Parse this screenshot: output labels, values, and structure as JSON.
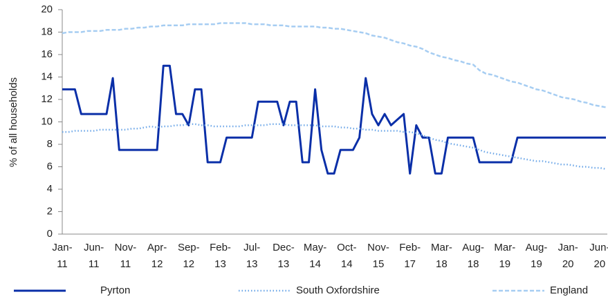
{
  "chart_data": {
    "type": "line",
    "y_label": "% of all households",
    "categories": [
      "Jan-11",
      null,
      null,
      null,
      null,
      "Jun-11",
      null,
      null,
      null,
      null,
      "Nov-11",
      null,
      null,
      null,
      null,
      "Apr-12",
      null,
      null,
      null,
      null,
      "Sep-12",
      null,
      null,
      null,
      null,
      "Feb-13",
      null,
      null,
      null,
      null,
      "Jul-13",
      null,
      null,
      null,
      null,
      "Dec-13",
      null,
      null,
      null,
      null,
      "May-14",
      null,
      null,
      null,
      null,
      "Oct-14",
      null,
      null,
      null,
      null,
      "Nov-15",
      null,
      null,
      null,
      null,
      "Feb-17",
      null,
      null,
      null,
      null,
      "Mar-18",
      null,
      null,
      null,
      null,
      "Aug-18",
      null,
      null,
      null,
      null,
      "Mar-19",
      null,
      null,
      null,
      null,
      "Aug-19",
      null,
      null,
      null,
      null,
      "Jan-20",
      null,
      null,
      null,
      null,
      "Jun-20",
      null
    ],
    "series": [
      {
        "name": "Pyrton",
        "color": "#0a2fa8",
        "style": "solid",
        "values": [
          12.9,
          12.9,
          12.9,
          10.7,
          10.7,
          10.7,
          10.7,
          10.7,
          13.9,
          7.5,
          7.5,
          7.5,
          7.5,
          7.5,
          7.5,
          7.5,
          15.0,
          15.0,
          10.7,
          10.7,
          9.7,
          12.9,
          12.9,
          6.4,
          6.4,
          6.4,
          8.6,
          8.6,
          8.6,
          8.6,
          8.6,
          11.8,
          11.8,
          11.8,
          11.8,
          9.7,
          11.8,
          11.8,
          6.4,
          6.4,
          12.9,
          7.5,
          5.4,
          5.4,
          7.5,
          7.5,
          7.5,
          8.6,
          13.9,
          10.7,
          9.7,
          10.7,
          9.7,
          10.2,
          10.7,
          5.4,
          9.7,
          8.6,
          8.6,
          5.4,
          5.4,
          8.6,
          8.6,
          8.6,
          8.6,
          8.6,
          6.4,
          6.4,
          6.4,
          6.4,
          6.4,
          6.4,
          8.6,
          8.6,
          8.6,
          8.6,
          8.6,
          8.6,
          8.6,
          8.6,
          8.6,
          8.6,
          8.6,
          8.6,
          8.6,
          8.6,
          8.6
        ]
      },
      {
        "name": "South Oxfordshire",
        "color": "#6fa8e8",
        "style": "dotted",
        "values": [
          9.1,
          9.1,
          9.2,
          9.2,
          9.2,
          9.2,
          9.3,
          9.3,
          9.3,
          9.3,
          9.3,
          9.4,
          9.4,
          9.5,
          9.6,
          9.5,
          9.6,
          9.6,
          9.7,
          9.7,
          9.8,
          9.8,
          9.7,
          9.7,
          9.6,
          9.6,
          9.6,
          9.6,
          9.6,
          9.7,
          9.7,
          9.7,
          9.7,
          9.8,
          9.8,
          9.8,
          9.7,
          9.7,
          9.7,
          9.7,
          9.7,
          9.6,
          9.6,
          9.6,
          9.5,
          9.5,
          9.4,
          9.4,
          9.3,
          9.3,
          9.2,
          9.2,
          9.2,
          9.2,
          9.1,
          9.1,
          9.0,
          8.8,
          8.6,
          8.4,
          8.3,
          8.1,
          8.0,
          7.9,
          7.8,
          7.7,
          7.5,
          7.3,
          7.2,
          7.1,
          7.0,
          6.9,
          6.8,
          6.7,
          6.6,
          6.5,
          6.5,
          6.4,
          6.3,
          6.2,
          6.2,
          6.1,
          6.0,
          6.0,
          5.9,
          5.9,
          5.8
        ]
      },
      {
        "name": "England",
        "color": "#a6cdf2",
        "style": "dashed",
        "values": [
          17.9,
          18.0,
          18.0,
          18.0,
          18.1,
          18.1,
          18.1,
          18.2,
          18.2,
          18.2,
          18.3,
          18.3,
          18.4,
          18.4,
          18.5,
          18.5,
          18.6,
          18.6,
          18.6,
          18.6,
          18.7,
          18.7,
          18.7,
          18.7,
          18.7,
          18.8,
          18.8,
          18.8,
          18.8,
          18.8,
          18.7,
          18.7,
          18.7,
          18.6,
          18.6,
          18.6,
          18.5,
          18.5,
          18.5,
          18.5,
          18.5,
          18.4,
          18.4,
          18.3,
          18.3,
          18.2,
          18.1,
          18.0,
          17.9,
          17.7,
          17.6,
          17.5,
          17.3,
          17.1,
          17.0,
          16.8,
          16.7,
          16.5,
          16.2,
          16.0,
          15.8,
          15.7,
          15.5,
          15.4,
          15.2,
          15.1,
          14.6,
          14.3,
          14.2,
          14.0,
          13.8,
          13.6,
          13.5,
          13.3,
          13.1,
          12.9,
          12.8,
          12.6,
          12.4,
          12.2,
          12.1,
          12.0,
          11.8,
          11.7,
          11.5,
          11.4,
          11.3
        ]
      }
    ],
    "ylim": [
      0,
      20
    ],
    "yticks": [
      0,
      2,
      4,
      6,
      8,
      10,
      12,
      14,
      16,
      18,
      20
    ],
    "legend": "bottom"
  }
}
